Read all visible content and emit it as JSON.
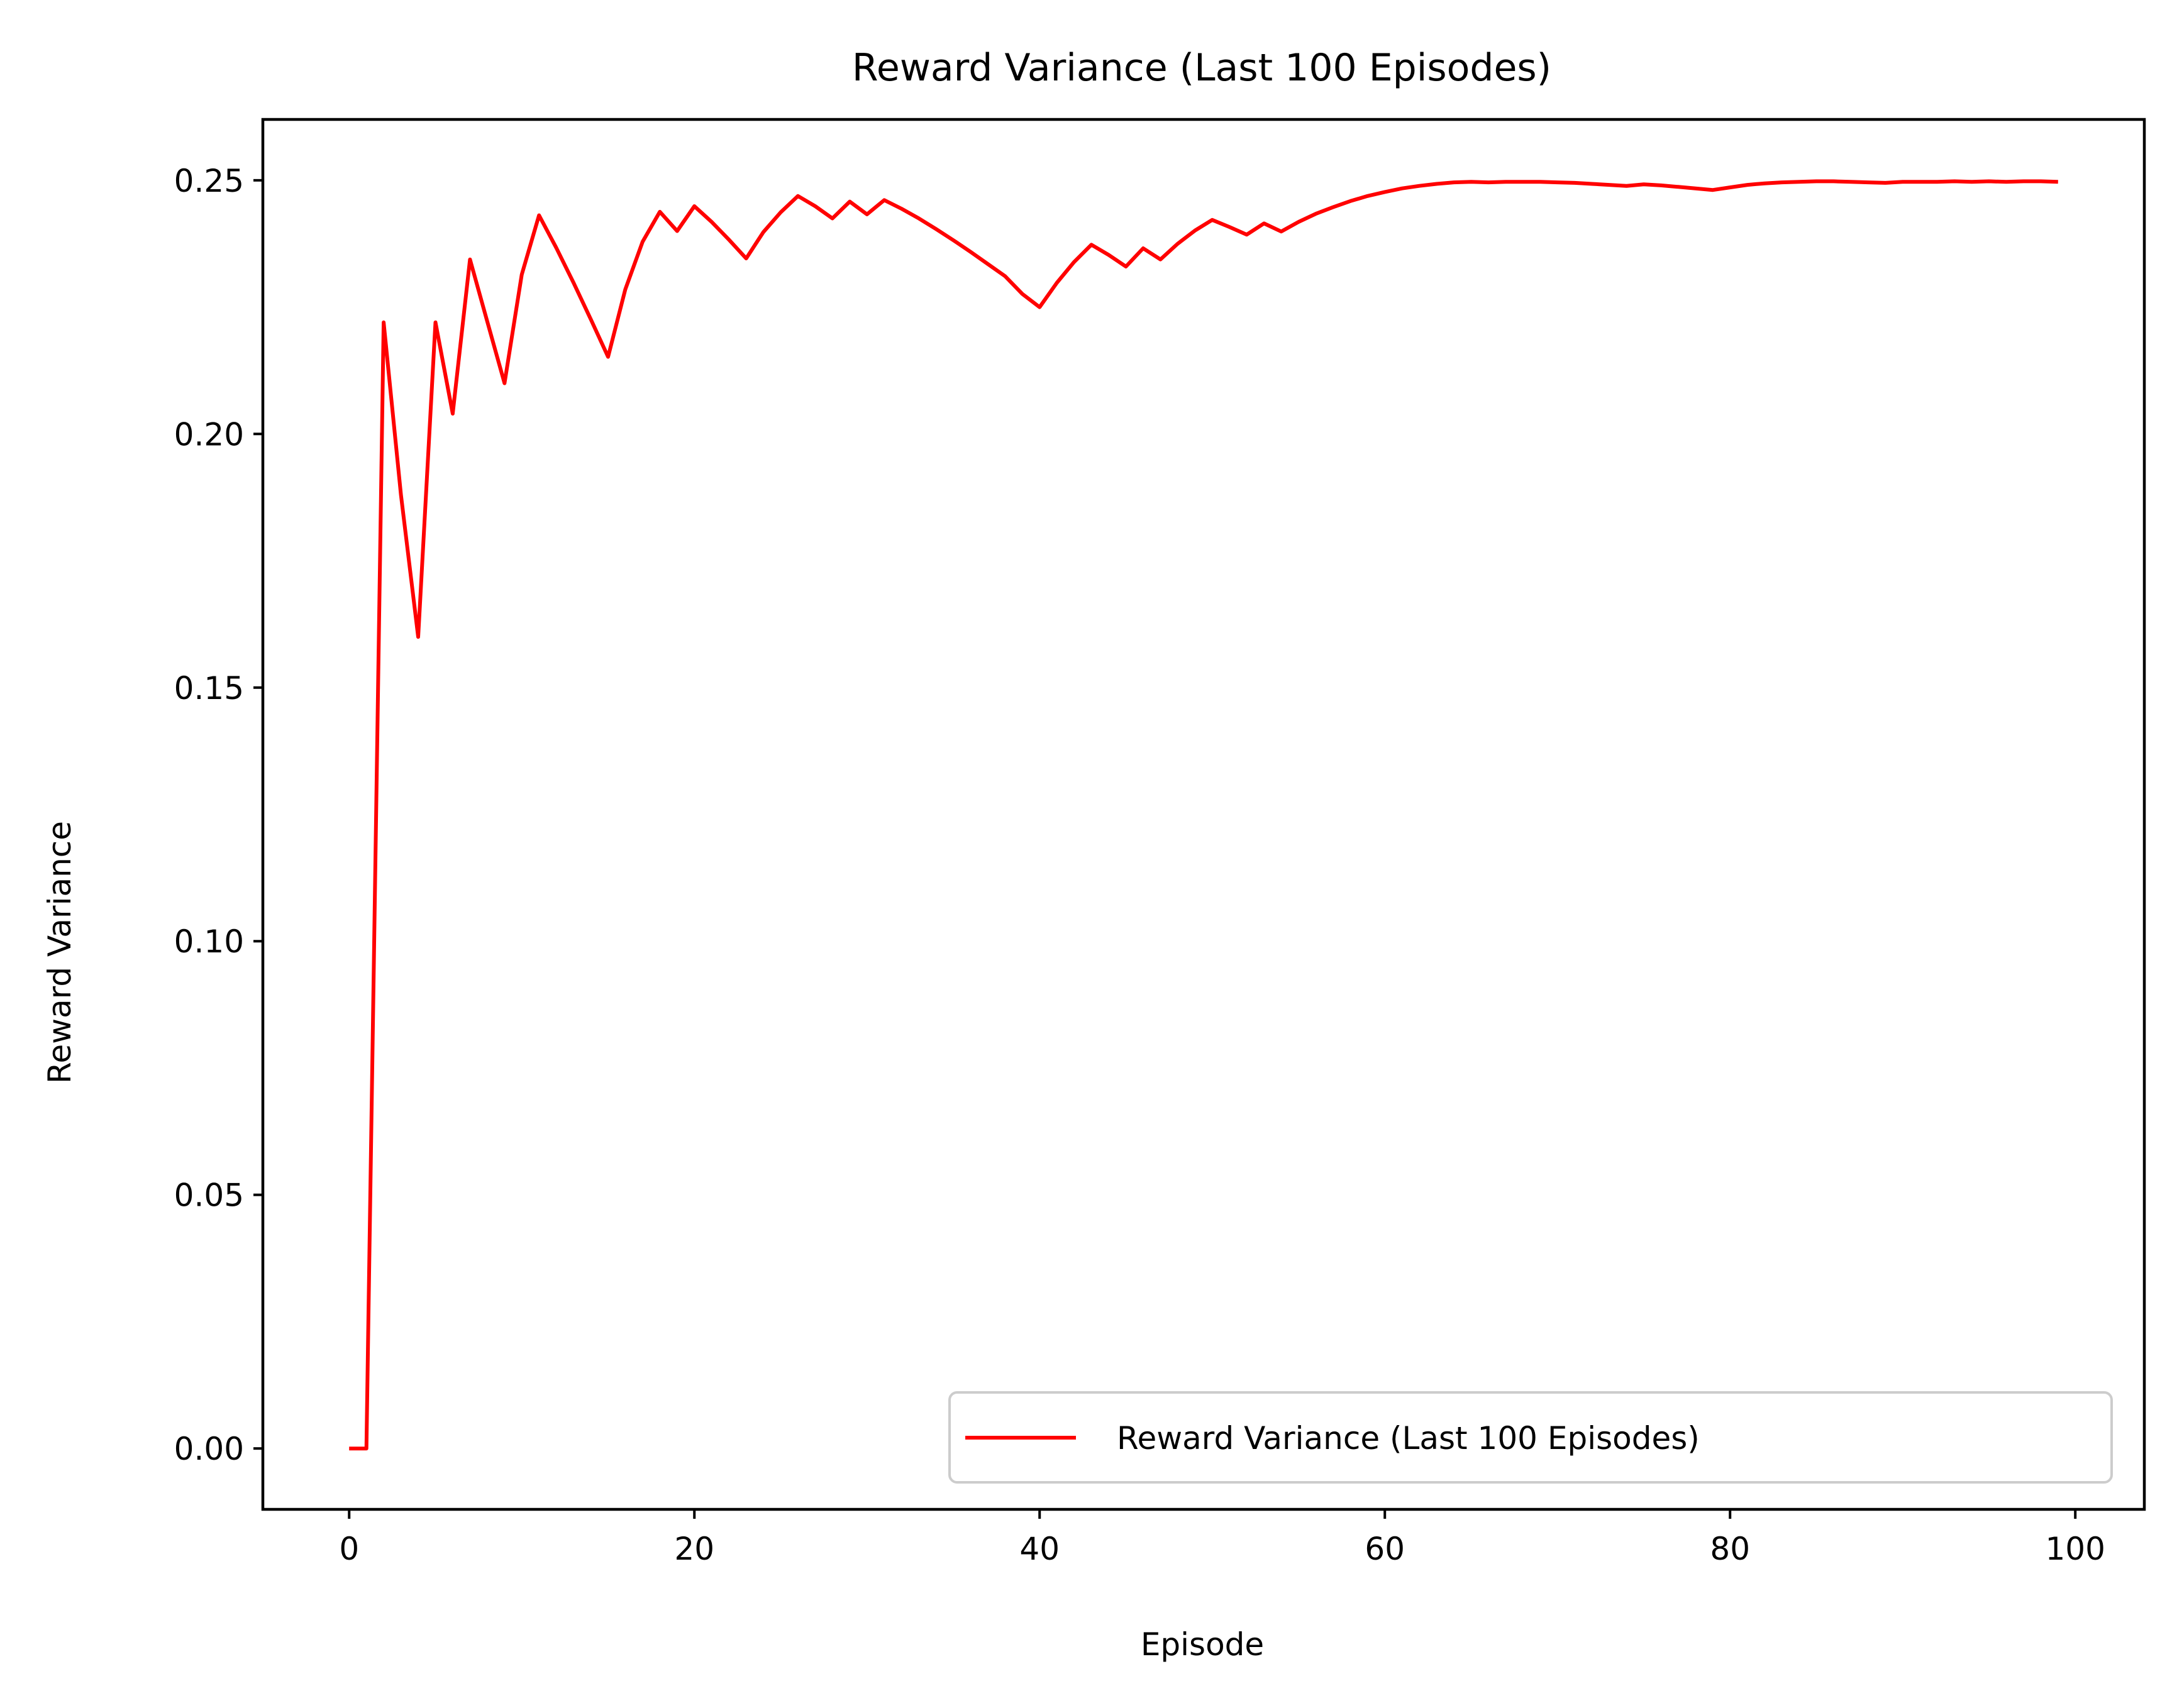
{
  "chart_data": {
    "type": "line",
    "title": "Reward Variance (Last 100 Episodes)",
    "xlabel": "Episode",
    "ylabel": "Reward Variance",
    "xlim": [
      -5,
      104
    ],
    "ylim": [
      -0.012,
      0.262
    ],
    "xticks": [
      0,
      20,
      40,
      60,
      80,
      100
    ],
    "xtick_labels": [
      "0",
      "20",
      "40",
      "60",
      "80",
      "100"
    ],
    "yticks": [
      0.0,
      0.05,
      0.1,
      0.15,
      0.2,
      0.25
    ],
    "ytick_labels": [
      "0.00",
      "0.05",
      "0.10",
      "0.15",
      "0.20",
      "0.25"
    ],
    "grid": false,
    "legend_position": "lower right",
    "series": [
      {
        "name": "Reward Variance (Last 100 Episodes)",
        "color": "#ff0000",
        "x": [
          0,
          1,
          2,
          3,
          4,
          5,
          6,
          7,
          8,
          9,
          10,
          11,
          12,
          13,
          14,
          15,
          16,
          17,
          18,
          19,
          20,
          21,
          22,
          23,
          24,
          25,
          26,
          27,
          28,
          29,
          30,
          31,
          32,
          33,
          34,
          35,
          36,
          37,
          38,
          39,
          40,
          41,
          42,
          43,
          44,
          45,
          46,
          47,
          48,
          49,
          50,
          51,
          52,
          53,
          54,
          55,
          56,
          57,
          58,
          59,
          60,
          61,
          62,
          63,
          64,
          65,
          66,
          67,
          68,
          69,
          70,
          71,
          72,
          73,
          74,
          75,
          76,
          77,
          78,
          79,
          80,
          81,
          82,
          83,
          84,
          85,
          86,
          87,
          88,
          89,
          90,
          91,
          92,
          93,
          94,
          95,
          96,
          97,
          98,
          99
        ],
        "values": [
          0.0,
          0.0,
          0.222,
          0.188,
          0.16,
          0.222,
          0.204,
          0.2344,
          0.2222,
          0.21,
          0.2314,
          0.2431,
          0.2367,
          0.2298,
          0.2226,
          0.2152,
          0.2285,
          0.2379,
          0.2438,
          0.24,
          0.2449,
          0.2418,
          0.2383,
          0.2346,
          0.2398,
          0.2437,
          0.2469,
          0.2449,
          0.2425,
          0.2458,
          0.2433,
          0.2461,
          0.2444,
          0.2425,
          0.2404,
          0.2382,
          0.2359,
          0.2335,
          0.2311,
          0.2276,
          0.225,
          0.2298,
          0.2339,
          0.2373,
          0.2353,
          0.233,
          0.2366,
          0.2344,
          0.2375,
          0.2401,
          0.2422,
          0.2408,
          0.2393,
          0.2415,
          0.2399,
          0.2418,
          0.2434,
          0.2447,
          0.2459,
          0.2469,
          0.2477,
          0.2484,
          0.2489,
          0.2493,
          0.2496,
          0.2497,
          0.2496,
          0.2497,
          0.2497,
          0.2497,
          0.2496,
          0.2495,
          0.2493,
          0.2491,
          0.2489,
          0.2492,
          0.249,
          0.2487,
          0.2484,
          0.2481,
          0.2486,
          0.2491,
          0.2494,
          0.2496,
          0.2497,
          0.2498,
          0.2498,
          0.2497,
          0.2496,
          0.2495,
          0.2497,
          0.2497,
          0.2497,
          0.2498,
          0.2497,
          0.2498,
          0.2497,
          0.2498,
          0.2498,
          0.2497
        ]
      }
    ]
  }
}
